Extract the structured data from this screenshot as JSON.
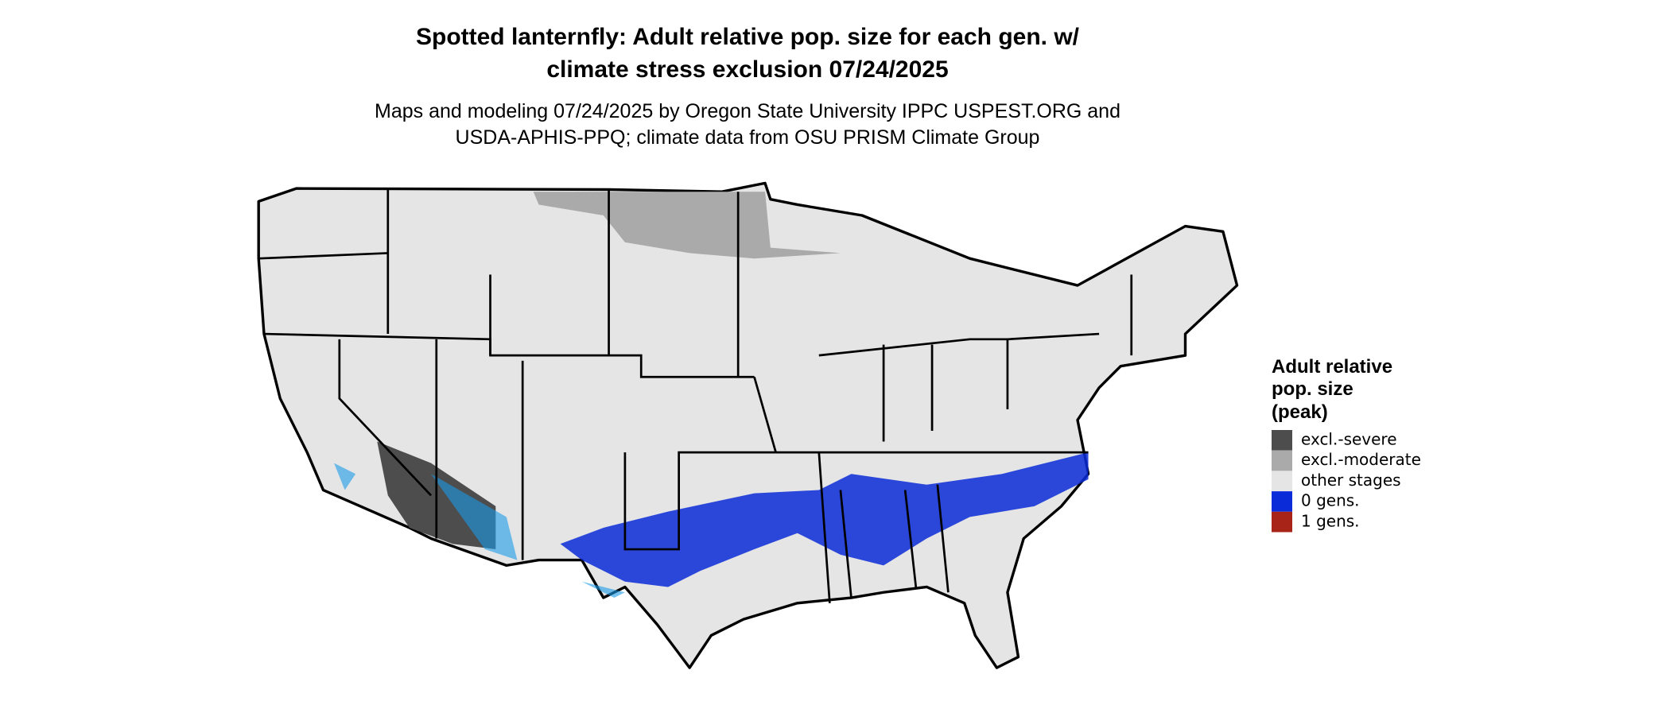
{
  "title": [
    "Spotted lanternfly: Adult relative pop. size for each gen. w/",
    "climate stress exclusion 07/24/2025"
  ],
  "subtitle": [
    "Maps and modeling 07/24/2025 by Oregon State University IPPC USPEST.ORG and",
    "USDA-APHIS-PPQ; climate data from OSU PRISM Climate Group"
  ],
  "legend": {
    "title": [
      "Adult relative",
      "pop. size",
      "(peak)"
    ],
    "items": [
      {
        "label": "excl.-severe",
        "color": "#4d4d4d"
      },
      {
        "label": "excl.-moderate",
        "color": "#aaaaaa"
      },
      {
        "label": "other stages",
        "color": "#e5e5e5"
      },
      {
        "label": "0 gens.",
        "color": "#0a2bd8"
      },
      {
        "label": "1 gens.",
        "color": "#a82418"
      }
    ]
  }
}
